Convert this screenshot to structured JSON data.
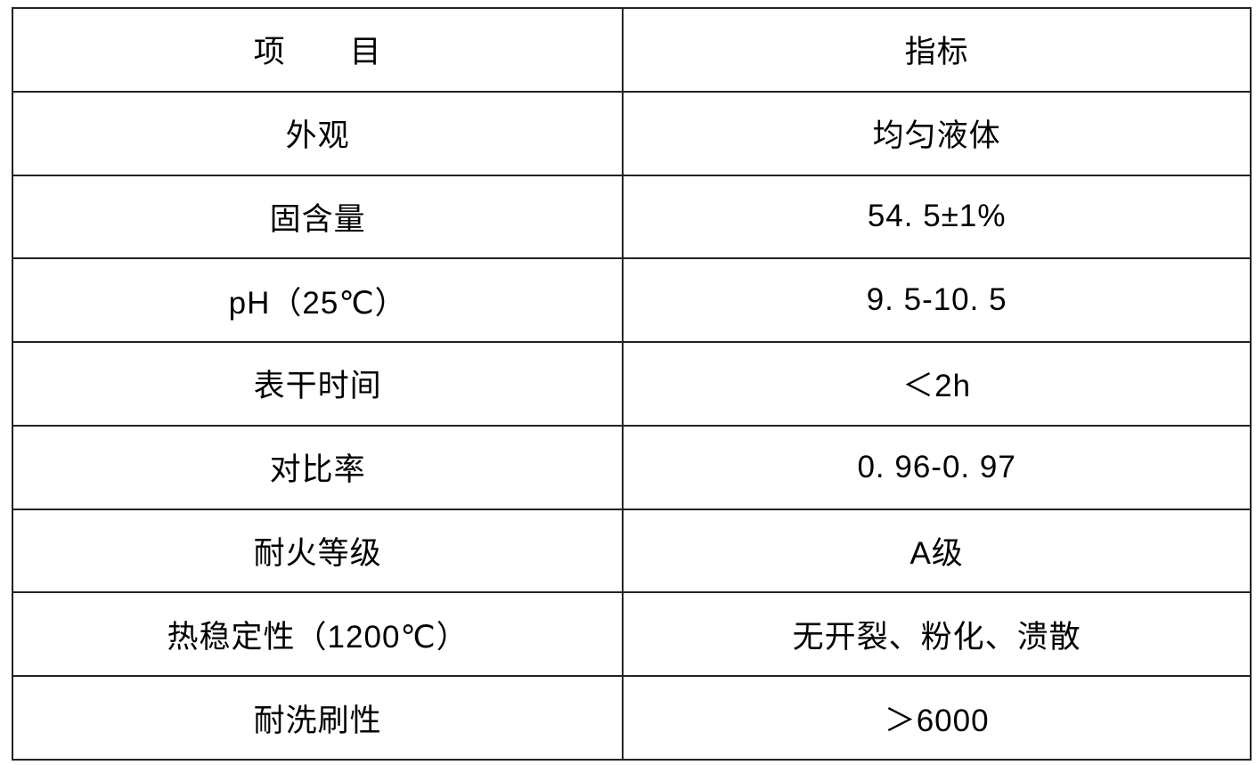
{
  "style": {
    "background": "#ffffff",
    "border_color": "#222222",
    "text_color": "#000000"
  },
  "table": {
    "header": {
      "item": "项　　目",
      "value": "指标"
    },
    "rows": [
      {
        "item": "外观",
        "value": "均匀液体"
      },
      {
        "item": "固含量",
        "value": "54. 5±1%"
      },
      {
        "item": "pH（25℃）",
        "value": "9. 5-10. 5"
      },
      {
        "item": "表干时间",
        "value": "＜2h"
      },
      {
        "item": "对比率",
        "value": "0. 96-0. 97"
      },
      {
        "item": "耐火等级",
        "value": "A级"
      },
      {
        "item": "热稳定性（1200℃）",
        "value": "无开裂、粉化、溃散"
      },
      {
        "item": "耐洗刷性",
        "value": "＞6000"
      }
    ]
  },
  "chart_data": {
    "type": "table",
    "columns": [
      "项　　目",
      "指标"
    ],
    "rows": [
      [
        "外观",
        "均匀液体"
      ],
      [
        "固含量",
        "54. 5±1%"
      ],
      [
        "pH（25℃）",
        "9. 5-10. 5"
      ],
      [
        "表干时间",
        "＜2h"
      ],
      [
        "对比率",
        "0. 96-0. 97"
      ],
      [
        "耐火等级",
        "A级"
      ],
      [
        "热稳定性（1200℃）",
        "无开裂、粉化、溃散"
      ],
      [
        "耐洗刷性",
        "＞6000"
      ]
    ],
    "title": "",
    "grid": true,
    "legend_position": "none"
  }
}
